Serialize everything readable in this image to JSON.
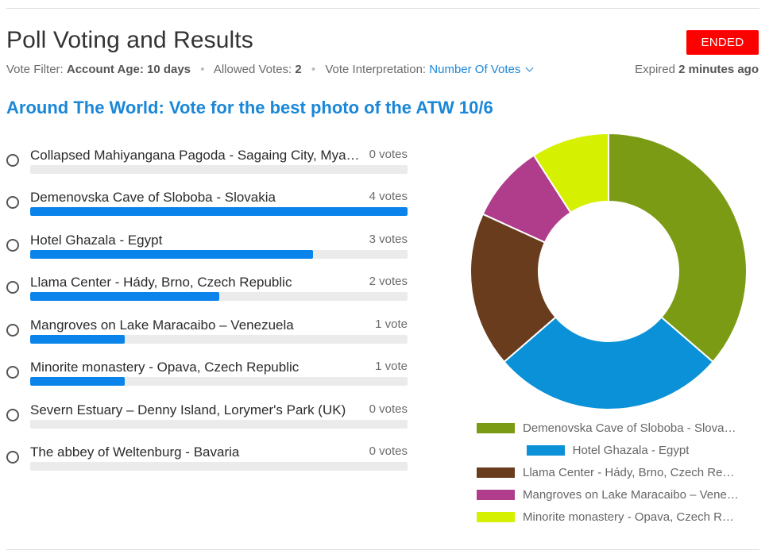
{
  "header": {
    "title": "Poll Voting and Results",
    "status": "ENDED",
    "filter_label": "Vote Filter:",
    "filter_value": "Account Age: 10 days",
    "allowed_label": "Allowed Votes:",
    "allowed_value": "2",
    "interp_label": "Vote Interpretation:",
    "interp_value": "Number Of Votes",
    "expired_prefix": "Expired",
    "expired_value": "2 minutes ago"
  },
  "poll": {
    "question": "Around The World: Vote for the best photo of the ATW 10/6",
    "max_votes": 4,
    "options": [
      {
        "label": "Collapsed Mahiyangana Pagoda - Sagaing City, Myanmar",
        "votes": 0,
        "votes_text": "0 votes"
      },
      {
        "label": "Demenovska Cave of Sloboba - Slovakia",
        "votes": 4,
        "votes_text": "4 votes"
      },
      {
        "label": "Hotel Ghazala - Egypt",
        "votes": 3,
        "votes_text": "3 votes"
      },
      {
        "label": "Llama Center - Hády, Brno, Czech Republic",
        "votes": 2,
        "votes_text": "2 votes"
      },
      {
        "label": "Mangroves on Lake Maracaibo – Venezuela",
        "votes": 1,
        "votes_text": "1 vote"
      },
      {
        "label": "Minorite monastery - Opava, Czech Republic",
        "votes": 1,
        "votes_text": "1 vote"
      },
      {
        "label": "Severn Estuary – Denny Island, Lorymer's Park (UK)",
        "votes": 0,
        "votes_text": "0 votes"
      },
      {
        "label": "The abbey of Weltenburg - Bavaria",
        "votes": 0,
        "votes_text": "0 votes"
      }
    ]
  },
  "chart_data": {
    "type": "pie",
    "donut": true,
    "categories": [
      "Demenovska Cave of Sloboba - Slovakia",
      "Hotel Ghazala - Egypt",
      "Llama Center - Hády, Brno, Czech Republic",
      "Mangroves on Lake Maracaibo – Venezuela",
      "Minorite monastery - Opava, Czech Republic"
    ],
    "values": [
      4,
      3,
      2,
      1,
      1
    ],
    "colors": [
      "#7a9b13",
      "#0a91d8",
      "#693c1e",
      "#b03c8c",
      "#d5f000"
    ],
    "legend": "bottom"
  }
}
